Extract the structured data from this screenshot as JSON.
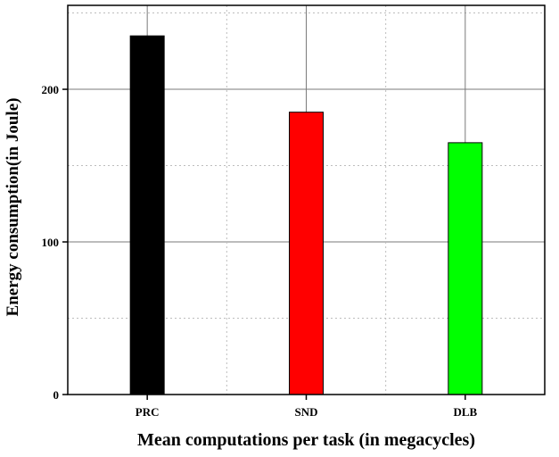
{
  "chart_data": {
    "type": "bar",
    "categories": [
      "PRC",
      "SND",
      "DLB"
    ],
    "values": [
      235,
      185,
      165
    ],
    "colors": [
      "#000000",
      "#ff0000",
      "#00ff00"
    ],
    "xlabel": "Mean computations per task (in megacycles)",
    "ylabel": "Energy consumption(in Joule)",
    "ylim": [
      0,
      255
    ],
    "yticks": [
      0,
      100,
      200
    ],
    "grid": true,
    "legend": "none"
  }
}
